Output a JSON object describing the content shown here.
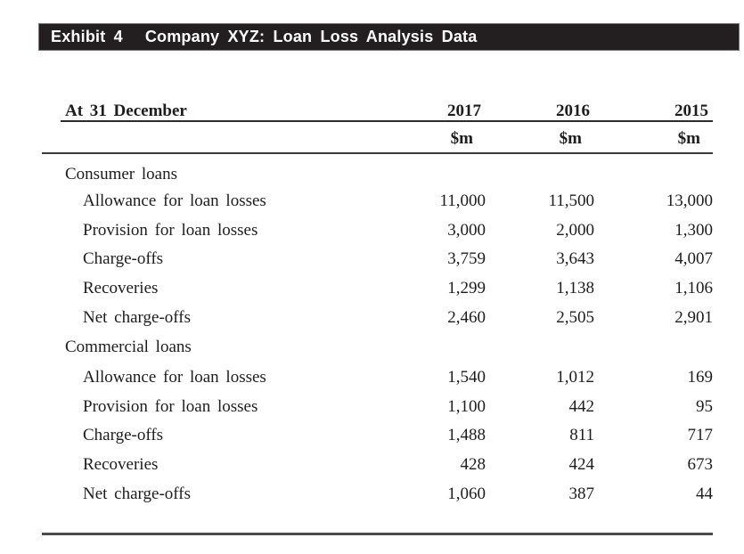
{
  "exhibit": {
    "label": "Exhibit 4",
    "title": "Company XYZ: Loan Loss Analysis Data"
  },
  "table": {
    "header": {
      "row_label": "At 31 December",
      "years": [
        "2017",
        "2016",
        "2015"
      ],
      "unit": "$m"
    },
    "sections": [
      {
        "name": "Consumer loans",
        "rows": [
          {
            "label": "Allowance for loan losses",
            "values": [
              "11,000",
              "11,500",
              "13,000"
            ]
          },
          {
            "label": "Provision for loan losses",
            "values": [
              "3,000",
              "2,000",
              "1,300"
            ]
          },
          {
            "label": "Charge-offs",
            "values": [
              "3,759",
              "3,643",
              "4,007"
            ]
          },
          {
            "label": "Recoveries",
            "values": [
              "1,299",
              "1,138",
              "1,106"
            ]
          },
          {
            "label": "Net charge-offs",
            "values": [
              "2,460",
              "2,505",
              "2,901"
            ]
          }
        ]
      },
      {
        "name": "Commercial loans",
        "rows": [
          {
            "label": "Allowance for loan losses",
            "values": [
              "1,540",
              "1,012",
              "169"
            ]
          },
          {
            "label": "Provision for loan losses",
            "values": [
              "1,100",
              "442",
              "95"
            ]
          },
          {
            "label": "Charge-offs",
            "values": [
              "1,488",
              "811",
              "717"
            ]
          },
          {
            "label": "Recoveries",
            "values": [
              "428",
              "424",
              "673"
            ]
          },
          {
            "label": "Net charge-offs",
            "values": [
              "1,060",
              "387",
              "44"
            ]
          }
        ]
      }
    ]
  },
  "colors": {
    "bar_background": "#231f20",
    "bar_text": "#ffffff",
    "body_text": "#1d1d1f",
    "rule": "#39393b"
  }
}
